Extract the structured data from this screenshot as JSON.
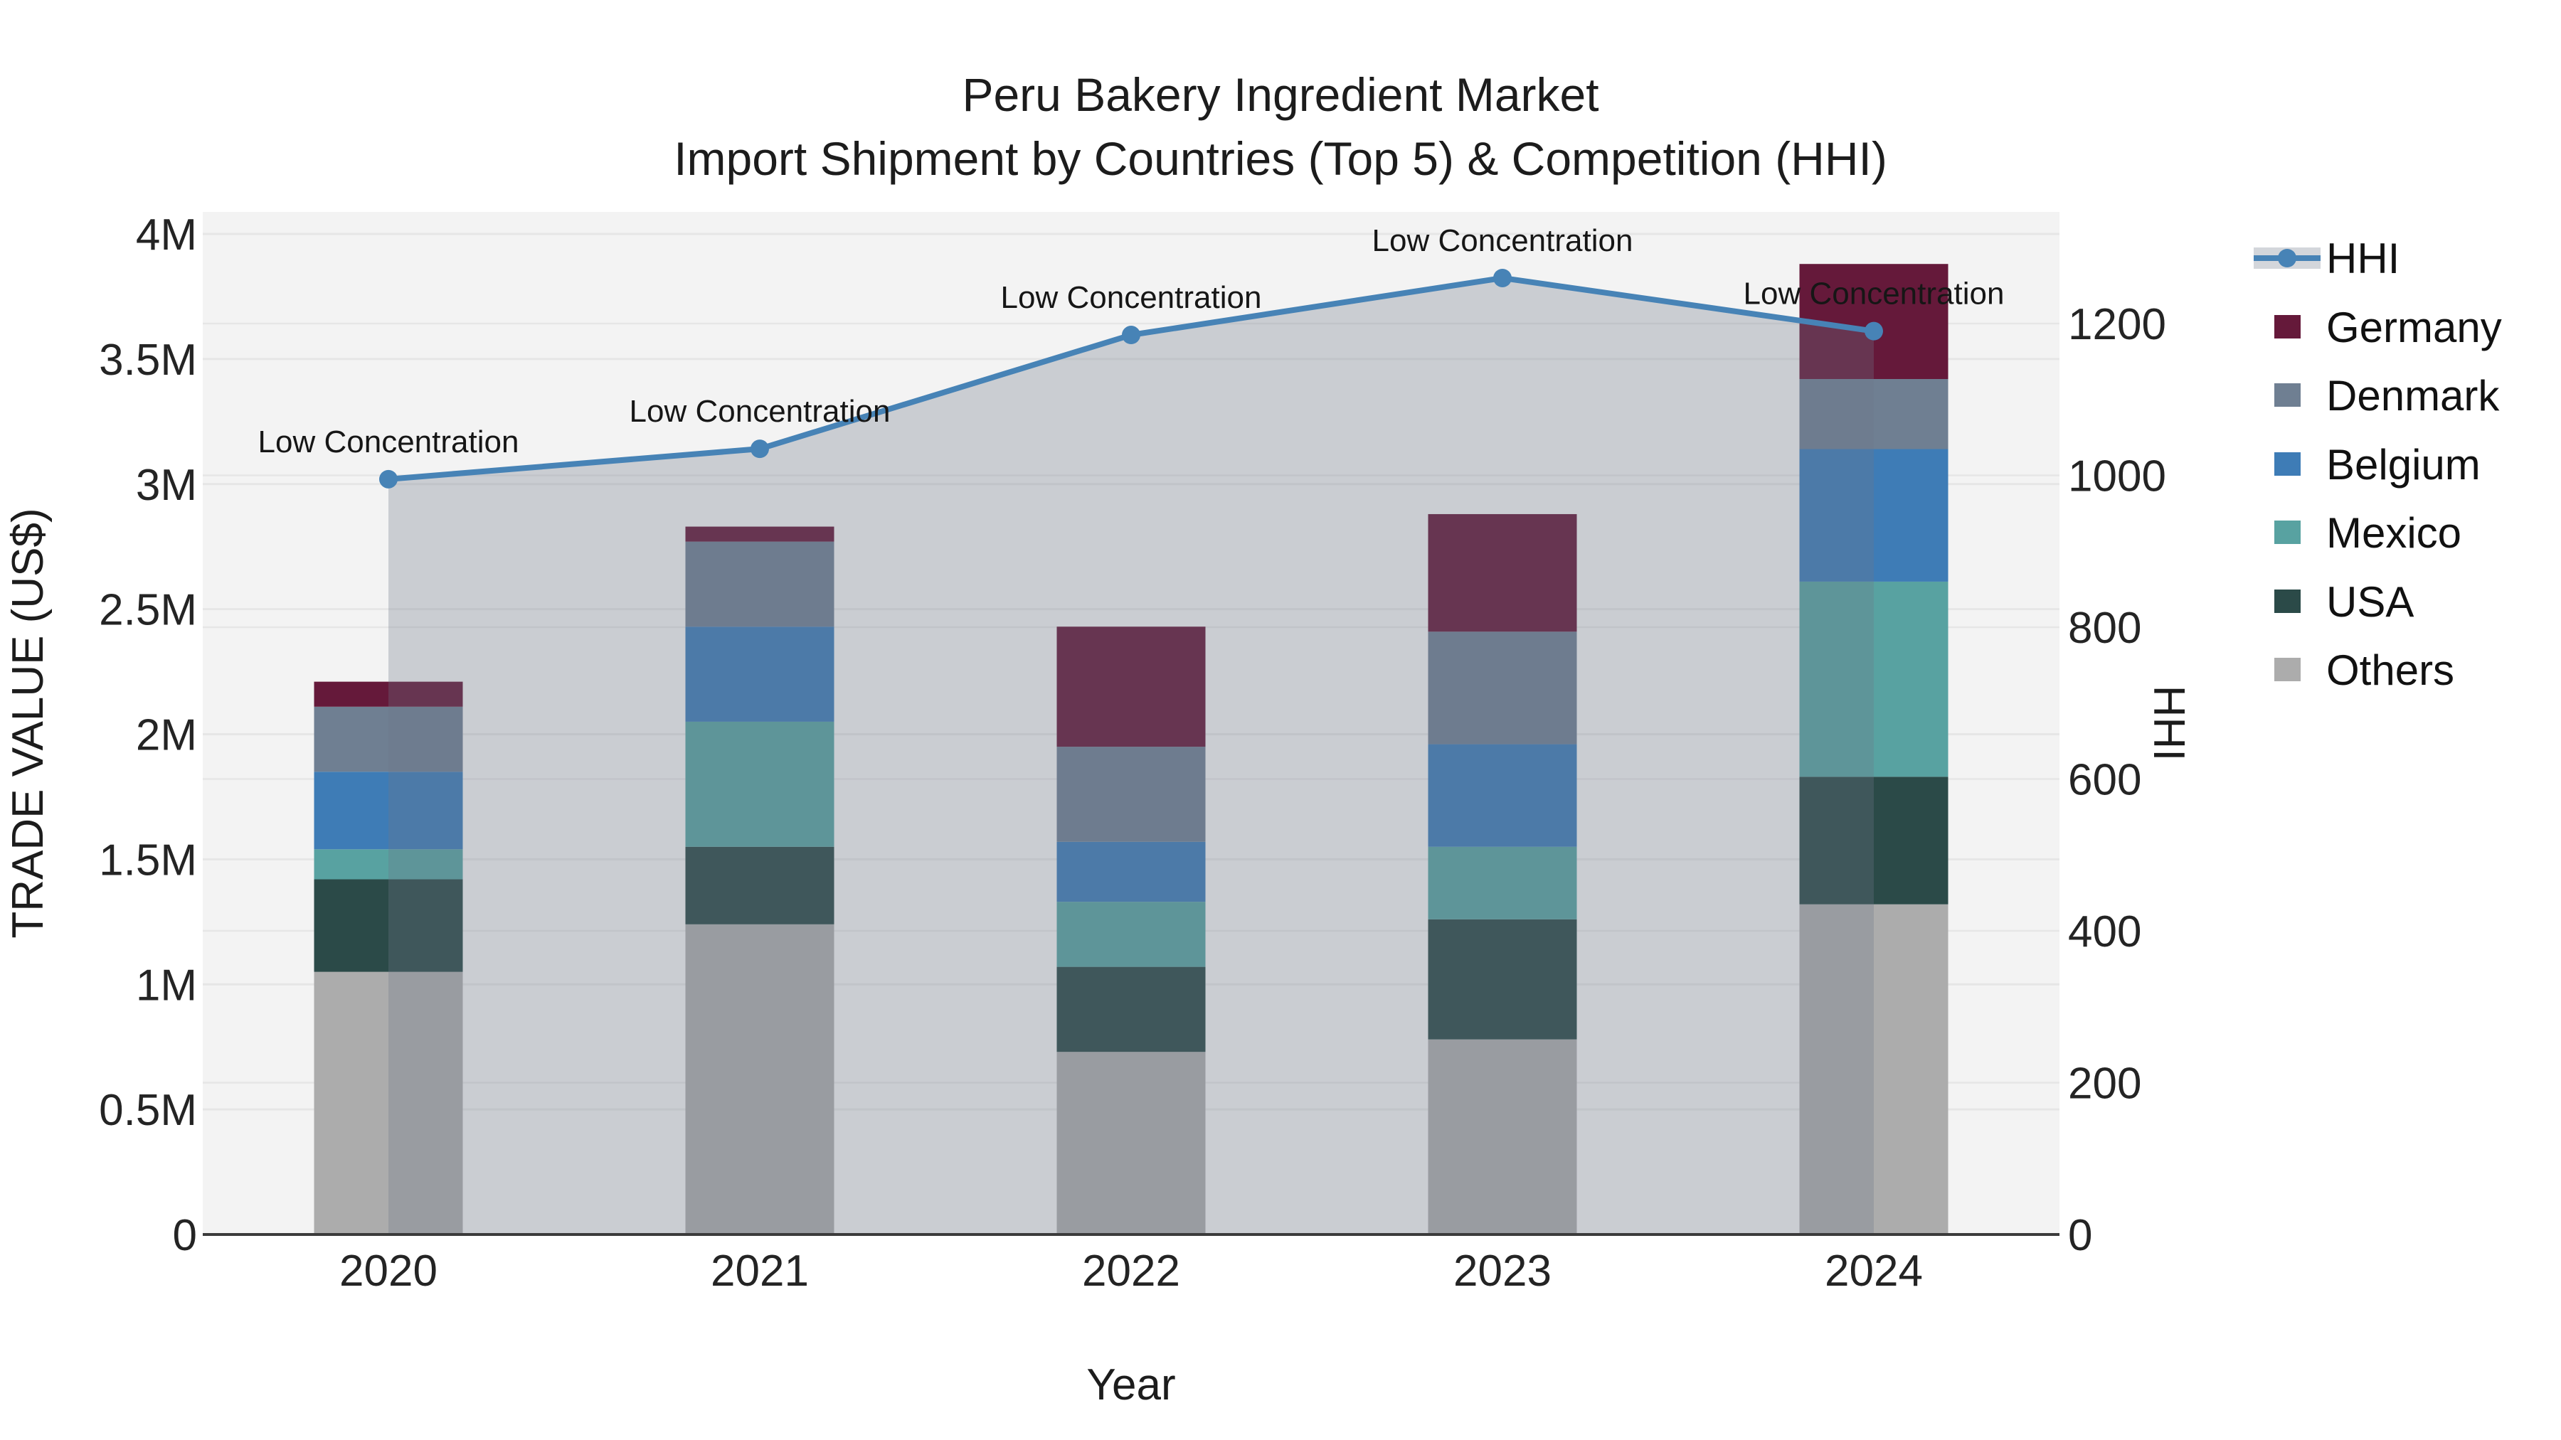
{
  "title": {
    "line1": "Peru Bakery Ingredient Market",
    "line2": "Import Shipment by Countries (Top 5) & Competition (HHI)"
  },
  "axes": {
    "left": {
      "title": "TRADE VALUE (US$)"
    },
    "right": {
      "title": "HHI"
    },
    "x": {
      "title": "Year"
    }
  },
  "legend": {
    "items": [
      {
        "label": "HHI",
        "type": "line",
        "color": "#4783B6"
      },
      {
        "label": "Germany",
        "type": "swatch",
        "color": "#65193A"
      },
      {
        "label": "Denmark",
        "type": "swatch",
        "color": "#6F7F92"
      },
      {
        "label": "Belgium",
        "type": "swatch",
        "color": "#3E7CB6"
      },
      {
        "label": "Mexico",
        "type": "swatch",
        "color": "#58A2A1"
      },
      {
        "label": "USA",
        "type": "swatch",
        "color": "#2B4A48"
      },
      {
        "label": "Others",
        "type": "swatch",
        "color": "#ACACAC"
      }
    ]
  },
  "colors": {
    "plot_background": "#F3F3F3",
    "gridline": "#E6E6E6",
    "axis_spine": "#3B3B3B",
    "hhi_line": "#4783B6",
    "hhi_area_fill": "rgba(108,118,135,0.30)",
    "annotation_text": "#161616",
    "tick_text": "#242424"
  },
  "chart_data": {
    "type": "bar+line",
    "title": "Peru Bakery Ingredient Market — Import Shipment by Countries (Top 5) & Competition (HHI)",
    "categories": [
      "2020",
      "2021",
      "2022",
      "2023",
      "2024"
    ],
    "stack_order_note": "bars stacked bottom-to-top: Others, USA, Mexico, Belgium, Denmark, Germany",
    "series": [
      {
        "name": "Germany",
        "color": "#65193A",
        "values_musd": [
          0.1,
          0.06,
          0.48,
          0.47,
          0.46
        ]
      },
      {
        "name": "Denmark",
        "color": "#6F7F92",
        "values_musd": [
          0.26,
          0.34,
          0.38,
          0.45,
          0.28
        ]
      },
      {
        "name": "Belgium",
        "color": "#3E7CB6",
        "values_musd": [
          0.31,
          0.38,
          0.24,
          0.41,
          0.53
        ]
      },
      {
        "name": "Mexico",
        "color": "#58A2A1",
        "values_musd": [
          0.12,
          0.5,
          0.26,
          0.29,
          0.78
        ]
      },
      {
        "name": "USA",
        "color": "#2B4A48",
        "values_musd": [
          0.37,
          0.31,
          0.34,
          0.48,
          0.51
        ]
      },
      {
        "name": "Others",
        "color": "#ACACAC",
        "values_musd": [
          1.05,
          1.24,
          0.73,
          0.78,
          1.32
        ]
      }
    ],
    "bar_totals_musd": [
      2.21,
      2.83,
      2.43,
      2.88,
      3.88
    ],
    "line_series": {
      "name": "HHI",
      "color": "#4783B6",
      "values": [
        995,
        1035,
        1185,
        1260,
        1190
      ]
    },
    "annotations": [
      "Low Concentration",
      "Low Concentration",
      "Low Concentration",
      "Low Concentration",
      "Low Concentration"
    ],
    "left_axis": {
      "label": "TRADE VALUE (US$)",
      "tick_labels": [
        "0",
        "0.5M",
        "1M",
        "1.5M",
        "2M",
        "2.5M",
        "3M",
        "3.5M",
        "4M"
      ],
      "tick_values_musd": [
        0,
        0.5,
        1,
        1.5,
        2,
        2.5,
        3,
        3.5,
        4
      ],
      "range_musd": [
        0,
        4.09
      ]
    },
    "right_axis": {
      "label": "HHI",
      "tick_labels": [
        "0",
        "200",
        "400",
        "600",
        "800",
        "1000",
        "1200"
      ],
      "tick_values": [
        0,
        200,
        400,
        600,
        800,
        1000,
        1200
      ],
      "range": [
        0,
        1347
      ]
    },
    "x_axis": {
      "label": "Year"
    },
    "grid": true,
    "legend_position": "right"
  }
}
